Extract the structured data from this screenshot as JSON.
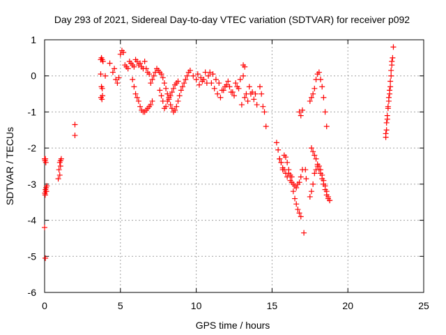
{
  "chart_data": {
    "type": "scatter",
    "title": "Day 293 of 2021, Sidereal Day-to-day VTEC variation (SDTVAR) for receiver p092",
    "xlabel": "GPS time / hours",
    "ylabel": "SDTVAR / TECUs",
    "xlim": [
      0,
      25
    ],
    "ylim": [
      -6,
      1
    ],
    "xticks": [
      0,
      5,
      10,
      15,
      20,
      25
    ],
    "yticks": [
      -6,
      -5,
      -4,
      -3,
      -2,
      -1,
      0,
      1
    ],
    "grid": true,
    "marker": "+",
    "color": "#ff0000",
    "series": [
      {
        "name": "SDTVAR",
        "x": [
          0.0,
          0.03,
          0.05,
          0.08,
          0.1,
          0.12,
          0.15,
          0.02,
          0.04,
          0.06,
          0.08,
          0.0,
          0.05,
          0.9,
          0.95,
          1.0,
          1.05,
          1.1,
          1.0,
          1.05,
          2.0,
          2.0,
          3.7,
          3.75,
          3.8,
          3.85,
          3.7,
          3.75,
          3.8,
          3.72,
          3.78,
          3.82,
          4.0,
          4.3,
          4.5,
          4.6,
          4.7,
          4.8,
          4.9,
          5.0,
          5.1,
          5.2,
          5.3,
          5.4,
          5.5,
          5.6,
          5.7,
          5.8,
          5.9,
          6.0,
          6.1,
          6.2,
          6.3,
          6.4,
          6.5,
          6.6,
          6.7,
          6.8,
          6.9,
          5.8,
          5.9,
          6.0,
          6.1,
          6.2,
          6.3,
          6.4,
          6.5,
          6.6,
          6.7,
          6.8,
          6.9,
          7.0,
          7.1,
          7.0,
          7.1,
          7.2,
          7.3,
          7.4,
          7.5,
          7.6,
          7.7,
          7.8,
          7.9,
          8.0,
          8.1,
          8.2,
          8.3,
          8.4,
          8.5,
          8.6,
          8.7,
          8.8,
          8.9,
          9.0,
          9.1,
          9.2,
          9.3,
          9.4,
          9.5,
          7.6,
          7.7,
          7.8,
          7.9,
          8.0,
          8.1,
          8.2,
          8.3,
          8.4,
          8.5,
          8.6,
          8.7,
          8.8,
          9.6,
          9.8,
          10.0,
          10.2,
          10.4,
          10.6,
          10.8,
          11.0,
          11.2,
          11.4,
          11.6,
          11.8,
          12.0,
          12.2,
          12.4,
          12.6,
          12.8,
          13.0,
          13.2,
          13.4,
          13.6,
          13.8,
          14.0,
          10.1,
          10.3,
          10.5,
          10.7,
          10.9,
          11.1,
          11.3,
          11.5,
          11.7,
          11.9,
          12.1,
          12.3,
          12.5,
          12.7,
          12.9,
          13.1,
          13.3,
          13.5,
          13.7,
          13.9,
          13.1,
          13.2,
          14.2,
          14.3,
          14.5,
          14.6,
          14.4,
          15.3,
          15.4,
          15.5,
          15.6,
          15.7,
          15.8,
          15.9,
          16.0,
          16.1,
          16.2,
          16.3,
          16.4,
          16.5,
          16.6,
          16.7,
          16.8,
          16.9,
          17.0,
          15.5,
          15.6,
          15.7,
          15.8,
          15.9,
          16.0,
          16.1,
          16.2,
          16.3,
          16.4,
          16.5,
          16.6,
          16.7,
          16.8,
          16.9,
          16.8,
          16.9,
          17.0,
          17.2,
          17.25,
          17.1,
          17.5,
          17.6,
          17.7,
          17.8,
          17.9,
          18.0,
          18.1,
          18.2,
          18.3,
          18.4,
          18.5,
          18.6,
          18.7,
          18.8,
          17.5,
          17.6,
          17.7,
          17.8,
          17.9,
          18.0,
          18.1,
          18.2,
          18.3,
          18.4,
          18.5,
          18.6,
          17.6,
          17.7,
          17.8,
          17.9,
          18.0,
          18.1,
          18.2,
          18.3,
          18.4,
          18.5,
          18.6,
          18.7,
          18.8,
          22.5,
          22.55,
          22.6,
          22.65,
          22.7,
          22.75,
          22.8,
          22.85,
          22.9,
          22.95,
          23.0,
          22.5,
          22.55,
          22.6,
          22.65,
          22.7,
          22.75,
          22.8,
          22.85,
          22.9
        ],
        "y": [
          -2.3,
          -2.35,
          -2.3,
          -2.4,
          -3.1,
          -3.2,
          -3.05,
          -3.25,
          -3.3,
          -3.15,
          -3.2,
          -4.2,
          -5.05,
          -2.85,
          -2.6,
          -2.4,
          -2.35,
          -2.3,
          -2.75,
          -2.5,
          -1.35,
          -1.65,
          0.45,
          0.5,
          0.45,
          0.4,
          0.05,
          -0.3,
          -0.35,
          -0.6,
          -0.65,
          -0.55,
          0.0,
          0.35,
          0.1,
          0.2,
          -0.1,
          -0.2,
          -0.05,
          0.6,
          0.7,
          0.65,
          0.3,
          0.25,
          0.2,
          0.4,
          0.35,
          0.3,
          0.25,
          0.45,
          0.4,
          0.3,
          0.35,
          0.25,
          0.2,
          0.4,
          0.2,
          0.1,
          0.05,
          -0.1,
          -0.3,
          -0.5,
          -0.6,
          -0.7,
          -0.85,
          -0.95,
          -1.0,
          -1.0,
          -0.95,
          -0.9,
          -0.85,
          -0.8,
          -0.7,
          -0.2,
          -0.1,
          0.0,
          0.1,
          0.2,
          0.15,
          0.1,
          0.05,
          -0.05,
          -0.2,
          -0.35,
          -0.5,
          -0.65,
          -0.8,
          -0.9,
          -1.0,
          -0.95,
          -0.85,
          -0.7,
          -0.55,
          -0.4,
          -0.3,
          -0.2,
          -0.1,
          0.0,
          0.1,
          -0.4,
          -0.55,
          -0.7,
          -0.9,
          -0.85,
          -0.7,
          -0.6,
          -0.55,
          -0.45,
          -0.35,
          -0.25,
          -0.2,
          -0.15,
          0.15,
          0.0,
          -0.1,
          -0.25,
          -0.15,
          0.1,
          0.0,
          -0.2,
          -0.35,
          -0.5,
          -0.6,
          -0.4,
          -0.25,
          -0.3,
          -0.45,
          -0.2,
          -0.35,
          -0.8,
          -0.6,
          -0.7,
          -0.5,
          -0.65,
          -0.8,
          0.05,
          -0.05,
          -0.1,
          -0.2,
          0.1,
          0.05,
          -0.1,
          -0.2,
          -0.4,
          -0.3,
          -0.15,
          -0.45,
          -0.55,
          -0.3,
          -0.1,
          0.0,
          -0.5,
          -0.3,
          -0.45,
          -0.5,
          0.3,
          0.25,
          -0.3,
          -0.5,
          -1.0,
          -1.4,
          -0.85,
          -1.85,
          -2.05,
          -2.3,
          -2.4,
          -2.55,
          -2.6,
          -2.7,
          -2.8,
          -2.7,
          -2.9,
          -2.95,
          -3.0,
          -3.05,
          -3.1,
          -3.0,
          -2.95,
          -2.8,
          -2.6,
          -2.3,
          -2.4,
          -2.6,
          -2.2,
          -2.25,
          -2.4,
          -2.6,
          -2.75,
          -2.8,
          -3.2,
          -3.4,
          -3.55,
          -3.7,
          -3.8,
          -3.9,
          -1.0,
          -1.1,
          -0.95,
          -2.6,
          -2.85,
          -4.35,
          -3.35,
          -3.2,
          -3.0,
          -2.7,
          -2.6,
          -2.45,
          -2.5,
          -2.6,
          -2.75,
          -2.9,
          -3.05,
          -3.2,
          -3.35,
          -3.45,
          -0.7,
          -0.6,
          -0.5,
          -0.35,
          -0.1,
          0.05,
          0.1,
          -0.1,
          -0.3,
          -0.6,
          -1.0,
          -1.4,
          -2.0,
          -2.1,
          -2.2,
          -2.3,
          -2.5,
          -2.6,
          -2.7,
          -2.85,
          -3.0,
          -3.15,
          -3.3,
          -3.4,
          -3.45,
          -1.7,
          -1.5,
          -1.2,
          -0.9,
          -0.7,
          -0.5,
          -0.3,
          0.0,
          0.3,
          0.5,
          0.8,
          -1.6,
          -1.3,
          -1.1,
          -0.85,
          -0.6,
          -0.4,
          -0.15,
          0.15,
          0.4
        ]
      }
    ]
  }
}
